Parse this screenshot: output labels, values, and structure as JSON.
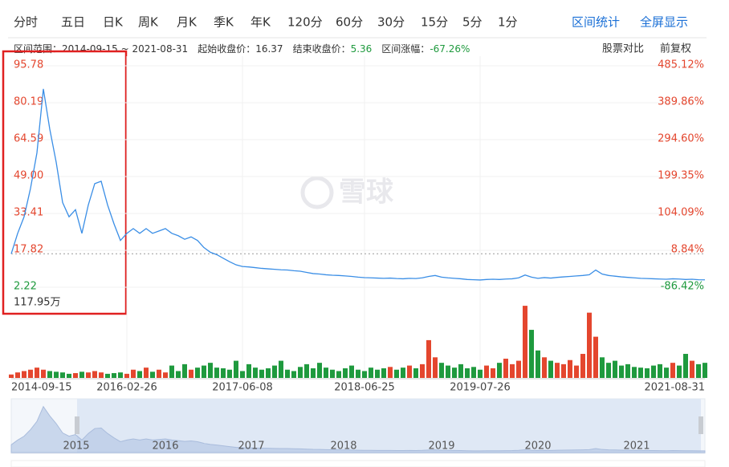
{
  "toolbar": {
    "tabs": [
      "分时",
      "五日",
      "日K",
      "周K",
      "月K",
      "季K",
      "年K",
      "120分",
      "60分",
      "30分",
      "15分",
      "5分",
      "1分"
    ],
    "actions": [
      "区间统计",
      "全屏显示"
    ],
    "info": [
      {
        "label": "区间范围：",
        "value": "2014-09-15 ~ 2021-08-31"
      },
      {
        "label": "起始收盘价：",
        "value": "16.37"
      },
      {
        "label": "结束收盘价：",
        "value": "5.36"
      },
      {
        "label": "区间涨幅：",
        "value": "-67.26%"
      }
    ],
    "options": [
      "股票对比",
      "前复权"
    ]
  },
  "watermark": "雪球",
  "chart_data": {
    "type": "line",
    "color": "#3a8ee6",
    "up_color": "#e4462e",
    "down_color": "#1f9a3e",
    "grid": true,
    "categories": [
      "2014-09-15",
      null,
      null,
      null,
      null,
      null,
      null,
      null,
      null,
      null,
      null,
      null,
      null,
      null,
      null,
      null,
      null,
      null,
      "2016-02-26",
      null,
      null,
      null,
      null,
      null,
      null,
      null,
      null,
      null,
      null,
      null,
      null,
      null,
      null,
      null,
      null,
      null,
      "2017-06-08",
      null,
      null,
      null,
      null,
      null,
      null,
      null,
      null,
      null,
      null,
      null,
      null,
      null,
      null,
      null,
      null,
      null,
      null,
      "2018-06-25",
      null,
      null,
      null,
      null,
      null,
      null,
      null,
      null,
      null,
      null,
      null,
      null,
      null,
      null,
      null,
      null,
      null,
      "2019-07-26",
      null,
      null,
      null,
      null,
      null,
      null,
      null,
      null,
      null,
      null,
      null,
      null,
      null,
      null,
      null,
      null,
      null,
      null,
      null,
      null,
      null,
      null,
      null,
      null,
      null,
      null,
      null,
      null,
      null,
      null,
      null,
      null,
      null,
      null,
      "2021-08-31"
    ],
    "values": [
      16.37,
      25,
      32,
      44,
      59,
      86,
      69,
      55,
      38,
      32,
      35,
      25,
      37,
      46,
      47,
      37,
      29,
      22,
      25,
      27,
      25,
      27,
      25,
      26,
      27,
      25,
      24,
      22.5,
      23.5,
      22,
      19,
      17,
      16,
      14.5,
      13,
      11.7,
      11,
      10.8,
      10.5,
      10.2,
      10,
      9.8,
      9.6,
      9.5,
      9.2,
      9,
      8.5,
      8,
      7.8,
      7.5,
      7.3,
      7.2,
      7,
      6.8,
      6.5,
      6.3,
      6.2,
      6.1,
      6,
      6.1,
      5.9,
      5.8,
      6,
      5.9,
      6.2,
      6.8,
      7.2,
      6.5,
      6.2,
      6,
      5.8,
      5.5,
      5.4,
      5.3,
      5.5,
      5.6,
      5.5,
      5.7,
      5.8,
      6.2,
      7.4,
      6.5,
      6,
      6.3,
      6.1,
      6.4,
      6.6,
      6.8,
      7,
      7.2,
      7.5,
      9.5,
      7.8,
      7.2,
      6.9,
      6.6,
      6.4,
      6.2,
      6,
      5.9,
      5.8,
      5.7,
      5.6,
      5.8,
      5.7,
      5.5,
      5.6,
      5.4,
      5.36
    ],
    "ylim": [
      2.22,
      95.78
    ],
    "yticks": [
      95.78,
      80.19,
      64.59,
      {
        "value": 49,
        "label": "49.00"
      },
      33.41,
      17.82,
      2.22
    ],
    "y2lim": [
      -86.42,
      485.12
    ],
    "y2ticks": [
      {
        "value": 485.12,
        "label": "485.12%"
      },
      {
        "value": 389.86,
        "label": "389.86%"
      },
      {
        "value": 294.6,
        "label": "294.60%"
      },
      {
        "value": 199.35,
        "label": "199.35%"
      },
      {
        "value": 104.09,
        "label": "104.09%"
      },
      {
        "value": 8.84,
        "label": "8.84%"
      },
      {
        "value": -86.42,
        "label": "-86.42%"
      }
    ],
    "volume": {
      "ylim": [
        0,
        117.95
      ],
      "yticks": [
        {
          "value": 117.95,
          "label": "117.95万"
        }
      ],
      "values": [
        5,
        8,
        10,
        12,
        15,
        12,
        10,
        9,
        8,
        6,
        7,
        9,
        8,
        10,
        8,
        6,
        7,
        8,
        6,
        12,
        10,
        15,
        9,
        12,
        8,
        18,
        10,
        20,
        12,
        15,
        18,
        22,
        15,
        14,
        12,
        25,
        10,
        20,
        15,
        12,
        14,
        18,
        25,
        12,
        10,
        16,
        20,
        14,
        22,
        15,
        12,
        10,
        14,
        18,
        12,
        10,
        15,
        12,
        14,
        16,
        12,
        15,
        18,
        14,
        20,
        55,
        30,
        22,
        18,
        15,
        20,
        14,
        16,
        12,
        18,
        14,
        22,
        28,
        20,
        25,
        105,
        70,
        40,
        30,
        25,
        22,
        20,
        26,
        18,
        35,
        95,
        60,
        30,
        22,
        25,
        18,
        20,
        16,
        15,
        14,
        18,
        20,
        15,
        22,
        18,
        35,
        25,
        20,
        22
      ]
    },
    "navigator": {
      "years": [
        "2015",
        "2016",
        "2017",
        "2018",
        "2019",
        "2020",
        "2021"
      ]
    }
  }
}
